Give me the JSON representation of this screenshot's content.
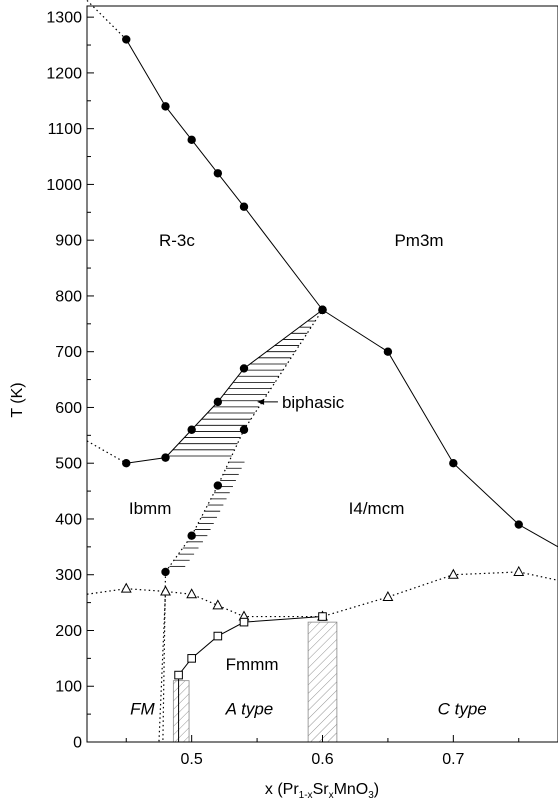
{
  "chart_data": {
    "type": "scatter",
    "xlabel_parts": {
      "pre": "x (Pr",
      "sub1": "1-x",
      "mid": "Sr",
      "sub2": "x",
      "post": "MnO",
      "sub3": "3",
      "close": ")"
    },
    "ylabel": "T (K)",
    "xlim": [
      0.42,
      0.78
    ],
    "ylim": [
      0,
      1320
    ],
    "xticks": [
      0.5,
      0.6,
      0.7
    ],
    "xtick_labels": [
      "0.5",
      "0.6",
      "0.7"
    ],
    "yticks": [
      0,
      100,
      200,
      300,
      400,
      500,
      600,
      700,
      800,
      900,
      1000,
      1100,
      1200,
      1300
    ],
    "ytick_labels": [
      "0",
      "100",
      "200",
      "300",
      "400",
      "500",
      "600",
      "700",
      "800",
      "900",
      "1000",
      "1100",
      "1200",
      "1300"
    ],
    "grid": false,
    "series": [
      {
        "marker": "filled-circle",
        "line": "solid",
        "x": [
          0.45,
          0.48,
          0.5,
          0.52,
          0.54,
          0.6
        ],
        "y": [
          1260,
          1140,
          1080,
          1020,
          960,
          775
        ]
      },
      {
        "marker": "filled-circle",
        "line": "solid",
        "x": [
          0.6,
          0.65,
          0.7,
          0.75
        ],
        "y": [
          775,
          700,
          500,
          390
        ]
      },
      {
        "marker": "filled-circle",
        "line": "solid",
        "x": [
          0.45,
          0.48,
          0.5,
          0.52,
          0.54,
          0.6
        ],
        "y": [
          500,
          510,
          560,
          610,
          670,
          775
        ]
      },
      {
        "marker": "filled-circle",
        "line": "dotted",
        "x": [
          0.48,
          0.5,
          0.52,
          0.54,
          0.6
        ],
        "y": [
          305,
          370,
          460,
          560,
          775
        ]
      },
      {
        "marker": "open-triangle",
        "line": "dotted",
        "x": [
          0.45,
          0.48,
          0.5,
          0.52,
          0.54,
          0.6,
          0.65,
          0.7,
          0.75
        ],
        "y": [
          275,
          270,
          265,
          245,
          225,
          225,
          260,
          300,
          305
        ]
      },
      {
        "marker": "open-square",
        "line": "solid",
        "x": [
          0.49,
          0.5,
          0.52,
          0.54,
          0.6
        ],
        "y": [
          120,
          150,
          190,
          215,
          225
        ]
      }
    ],
    "region_labels": [
      {
        "text": "R-3c",
        "x": 0.475,
        "y": 900,
        "italic": false
      },
      {
        "text": "Pm3m",
        "x": 0.655,
        "y": 900,
        "italic": false
      },
      {
        "text": "Ibmm",
        "x": 0.452,
        "y": 420,
        "italic": false
      },
      {
        "text": "I4/mcm",
        "x": 0.62,
        "y": 420,
        "italic": false
      },
      {
        "text": "Fmmm",
        "x": 0.526,
        "y": 140,
        "italic": false
      },
      {
        "text": "FM",
        "x": 0.453,
        "y": 60,
        "italic": true
      },
      {
        "text": "A type",
        "x": 0.526,
        "y": 60,
        "italic": true
      },
      {
        "text": "C type",
        "x": 0.688,
        "y": 60,
        "italic": true
      }
    ],
    "annotations": [
      {
        "text": "biphasic",
        "x": 0.569,
        "y": 610,
        "arrow_to": [
          0.55,
          610
        ]
      }
    ]
  }
}
